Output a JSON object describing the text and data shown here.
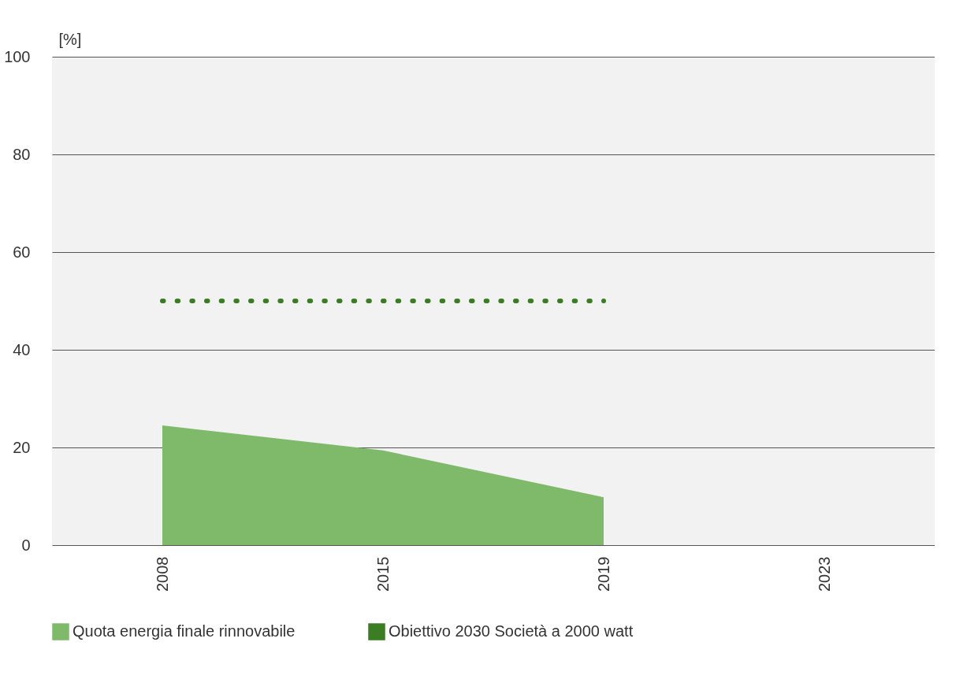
{
  "chart_data": {
    "type": "area",
    "ylabel": "[%]",
    "categories": [
      "2008",
      "2015",
      "2019",
      "2023"
    ],
    "series": [
      {
        "name": "Quota energia finale rinnovabile",
        "type": "area",
        "color": "#7fba6b",
        "values": [
          24.5,
          19.4,
          9.8,
          null
        ]
      },
      {
        "name": "Obiettivo 2030 Società a 2000 watt",
        "type": "line",
        "color": "#3a7d22",
        "line_style": "dotted",
        "values": [
          50,
          50,
          50,
          null
        ]
      }
    ],
    "ylim": [
      0,
      100
    ],
    "yticks": [
      0,
      20,
      40,
      60,
      80,
      100
    ],
    "grid": "y",
    "legend": "bottom"
  }
}
